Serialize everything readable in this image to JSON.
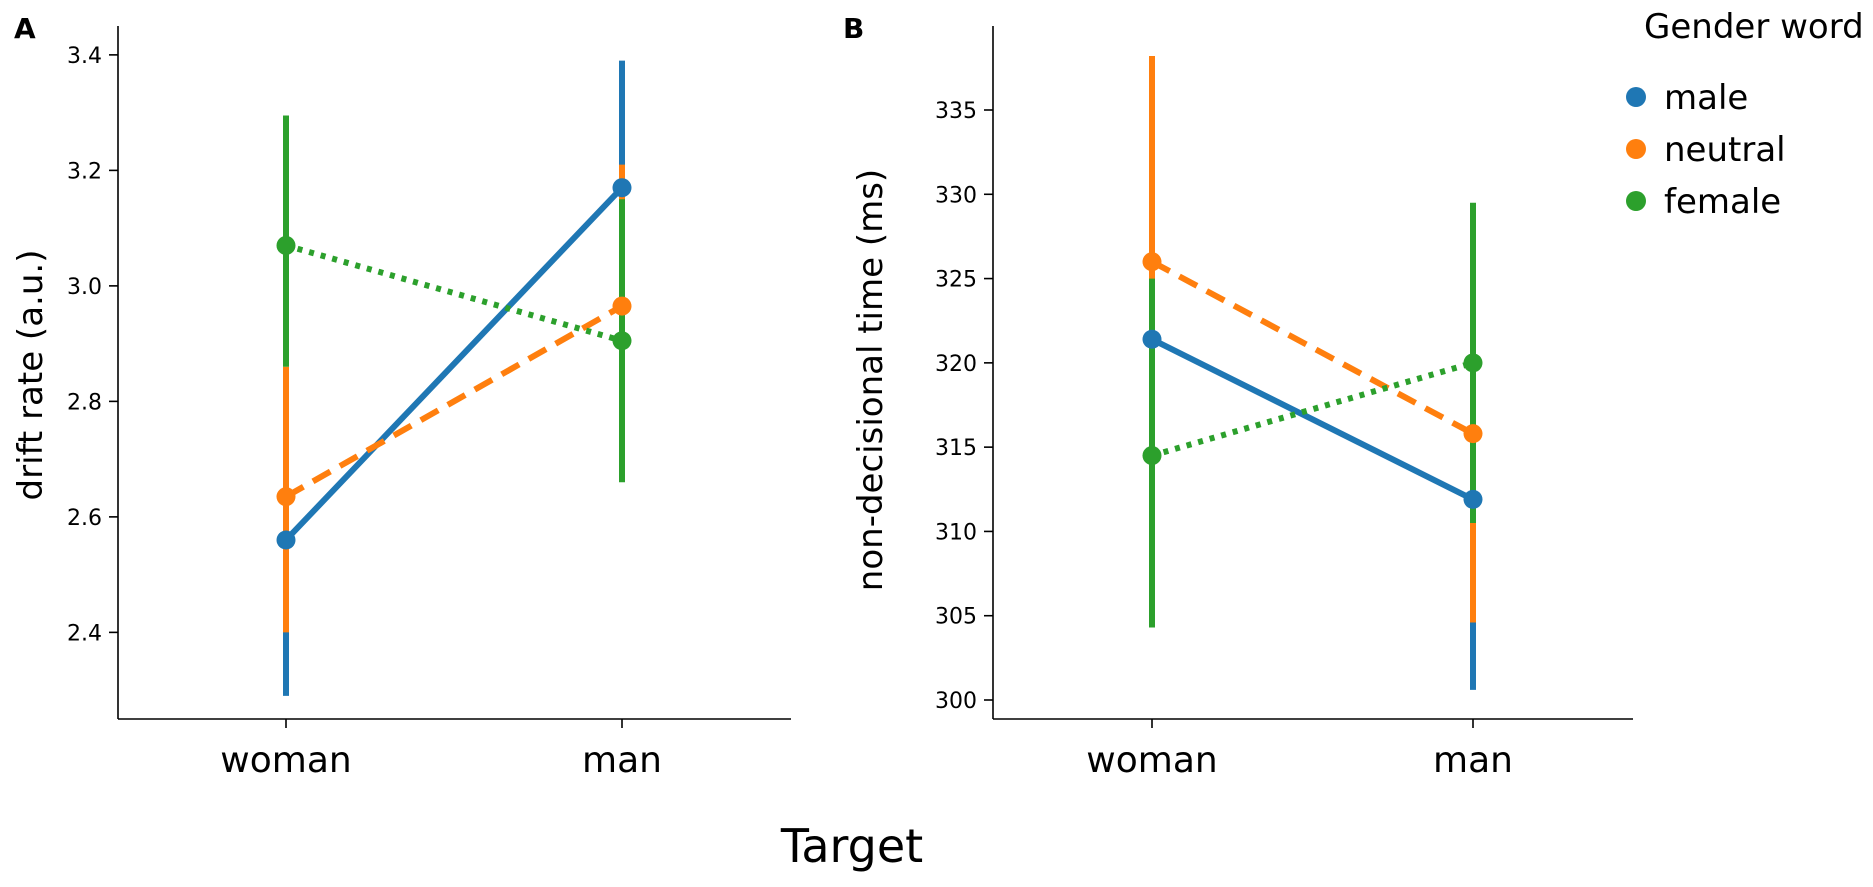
{
  "figure": {
    "xlabel": "Target",
    "legend": {
      "title": "Gender word",
      "placement": "top-right",
      "entries": [
        {
          "name": "male",
          "color": "#1f77b4"
        },
        {
          "name": "neutral",
          "color": "#ff7f0e"
        },
        {
          "name": "female",
          "color": "#2ca02c"
        }
      ]
    }
  },
  "chart_data": [
    {
      "panel": "A",
      "type": "line",
      "categories": [
        "woman",
        "man"
      ],
      "ylabel": "drift rate (a.u.)",
      "ylim": [
        2.25,
        3.45
      ],
      "yticks": [
        2.4,
        2.6,
        2.8,
        3.0,
        3.2,
        3.4
      ],
      "yticklabels": [
        "2.4",
        "2.6",
        "2.8",
        "3.0",
        "3.2",
        "3.4"
      ],
      "series": [
        {
          "name": "male",
          "color": "#1f77b4",
          "line_style": "solid",
          "values": [
            2.56,
            3.17
          ],
          "ci_low": [
            2.29,
            2.95
          ],
          "ci_high": [
            2.83,
            3.39
          ]
        },
        {
          "name": "neutral",
          "color": "#ff7f0e",
          "line_style": "dashed",
          "values": [
            2.635,
            2.965
          ],
          "ci_low": [
            2.4,
            2.72
          ],
          "ci_high": [
            2.86,
            3.21
          ]
        },
        {
          "name": "female",
          "color": "#2ca02c",
          "line_style": "dotted",
          "values": [
            3.07,
            2.905
          ],
          "ci_low": [
            2.86,
            2.66
          ],
          "ci_high": [
            3.295,
            3.15
          ]
        }
      ]
    },
    {
      "panel": "B",
      "type": "line",
      "categories": [
        "woman",
        "man"
      ],
      "ylabel": "non-decisional time (ms)",
      "ylim": [
        298.8,
        340
      ],
      "yticks": [
        300,
        305,
        310,
        315,
        320,
        325,
        330,
        335
      ],
      "yticklabels": [
        "300",
        "305",
        "310",
        "315",
        "320",
        "325",
        "330",
        "335"
      ],
      "series": [
        {
          "name": "male",
          "color": "#1f77b4",
          "line_style": "solid",
          "values": [
            321.4,
            311.9
          ],
          "ci_low": [
            313.5,
            300.6
          ],
          "ci_high": [
            328.5,
            321.8
          ]
        },
        {
          "name": "neutral",
          "color": "#ff7f0e",
          "line_style": "dashed",
          "values": [
            326.0,
            315.8
          ],
          "ci_low": [
            318.0,
            304.6
          ],
          "ci_high": [
            338.2,
            326.5
          ]
        },
        {
          "name": "female",
          "color": "#2ca02c",
          "line_style": "dotted",
          "values": [
            314.5,
            320.0
          ],
          "ci_low": [
            304.3,
            310.5
          ],
          "ci_high": [
            325.0,
            329.5
          ]
        }
      ]
    }
  ]
}
